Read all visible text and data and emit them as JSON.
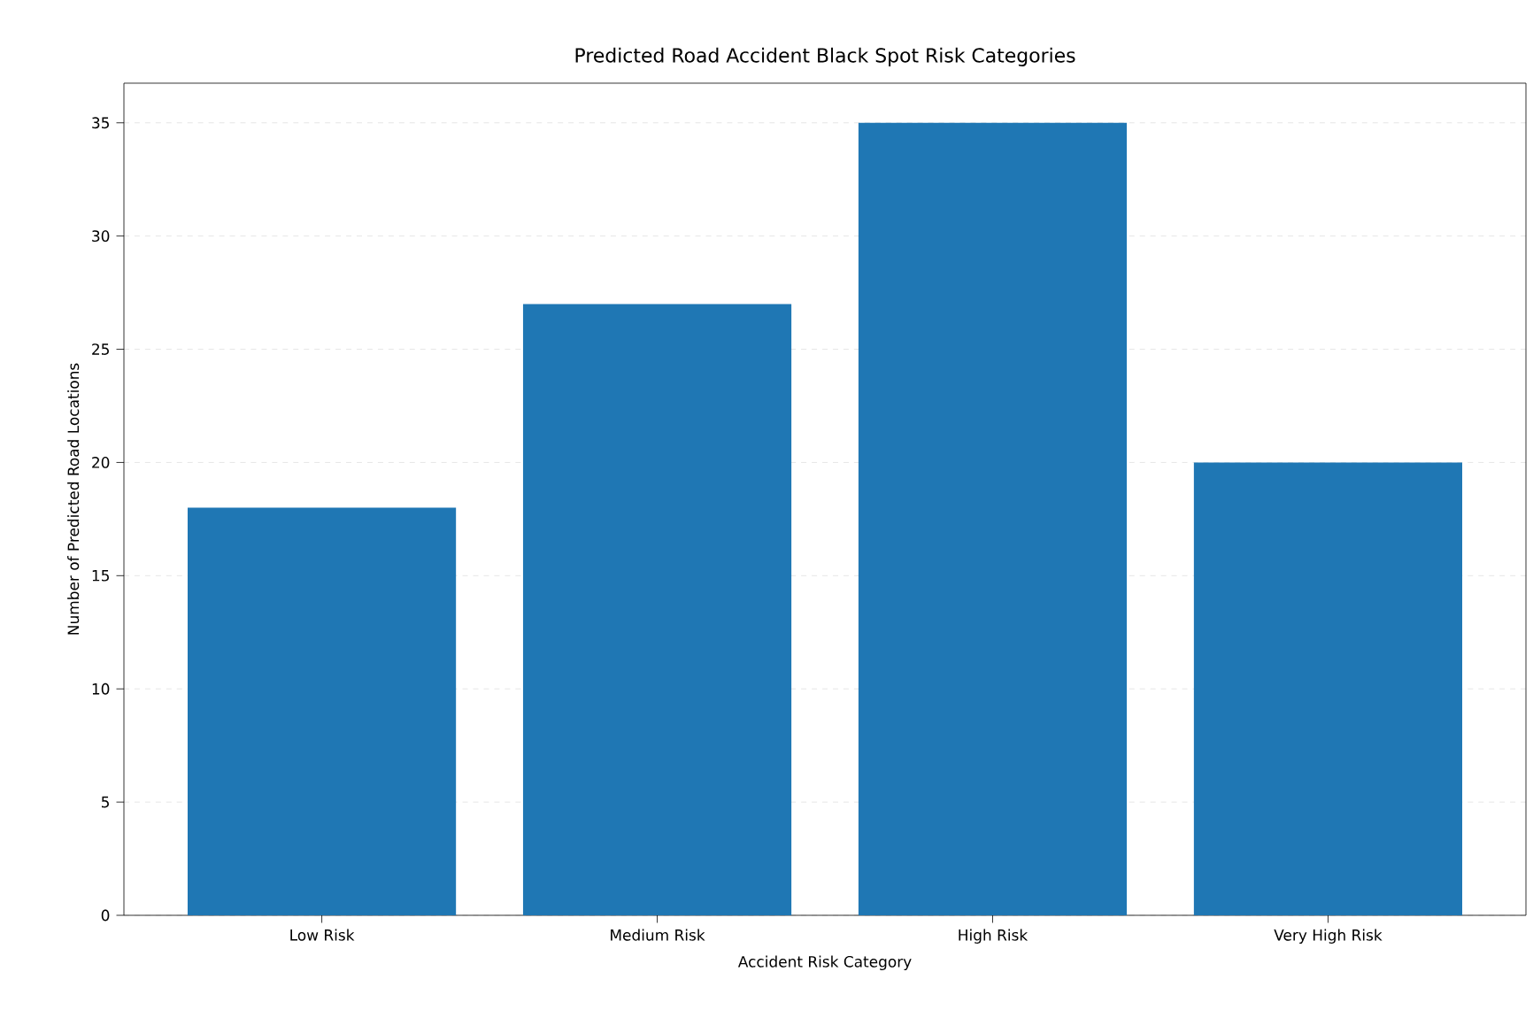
{
  "chart_data": {
    "type": "bar",
    "title": "Predicted Road Accident Black Spot Risk Categories",
    "xlabel": "Accident Risk Category",
    "ylabel": "Number of Predicted Road Locations",
    "categories": [
      "Low Risk",
      "Medium Risk",
      "High Risk",
      "Very High Risk"
    ],
    "values": [
      18,
      27,
      35,
      20
    ],
    "color": "#1f77b4",
    "ylim": [
      0,
      36.75
    ],
    "yticks": [
      0,
      5,
      10,
      15,
      20,
      25,
      30,
      35
    ],
    "grid": "y"
  }
}
